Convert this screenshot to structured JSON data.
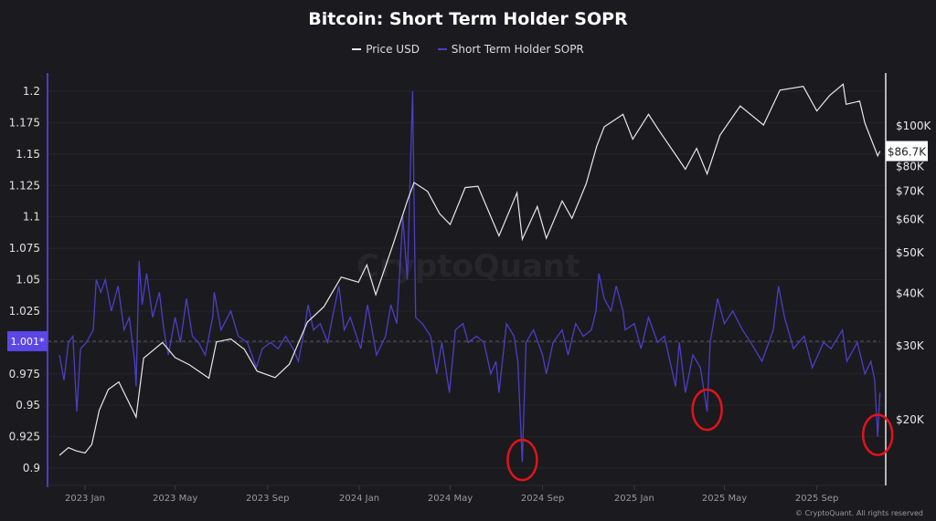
{
  "chart_data": {
    "type": "line",
    "title": "Bitcoin: Short Term Holder SOPR",
    "legend_position": "top",
    "grid": true,
    "left_axis": {
      "ticks": [
        "0.9",
        "0.925",
        "0.95",
        "0.975",
        "1",
        "1.025",
        "1.05",
        "1.075",
        "1.1",
        "1.125",
        "1.15",
        "1.175",
        "1.2"
      ],
      "ylim": [
        0.9,
        1.2
      ],
      "reference_value_label": "1.001*",
      "reference_value": 1.001
    },
    "right_axis": {
      "scale": "log",
      "ticks": [
        {
          "label": "$20K",
          "v": 20000
        },
        {
          "label": "$30K",
          "v": 30000
        },
        {
          "label": "$40K",
          "v": 40000
        },
        {
          "label": "$50K",
          "v": 50000
        },
        {
          "label": "$60K",
          "v": 60000
        },
        {
          "label": "$70K",
          "v": 70000
        },
        {
          "label": "$80K",
          "v": 80000
        },
        {
          "label": "$100K",
          "v": 100000
        }
      ],
      "current_label": "$86.7K",
      "current_value": 86700
    },
    "x_axis": {
      "ticks": [
        {
          "label": "2023 Jan",
          "d": "2023-01-01"
        },
        {
          "label": "2023 May",
          "d": "2023-05-01"
        },
        {
          "label": "2023 Sep",
          "d": "2023-09-01"
        },
        {
          "label": "2024 Jan",
          "d": "2024-01-01"
        },
        {
          "label": "2024 May",
          "d": "2024-05-01"
        },
        {
          "label": "2024 Sep",
          "d": "2024-09-01"
        },
        {
          "label": "2025 Jan",
          "d": "2025-01-01"
        },
        {
          "label": "2025 May",
          "d": "2025-05-01"
        },
        {
          "label": "2025 Sep",
          "d": "2025-09-01"
        }
      ]
    },
    "series": [
      {
        "name": "Price USD",
        "color": "#e8e8e8",
        "axis": "right",
        "points": [
          [
            "2022-11-28",
            16400
          ],
          [
            "2022-12-10",
            17100
          ],
          [
            "2022-12-20",
            16800
          ],
          [
            "2023-01-01",
            16600
          ],
          [
            "2023-01-10",
            17400
          ],
          [
            "2023-01-20",
            21000
          ],
          [
            "2023-02-01",
            23500
          ],
          [
            "2023-02-15",
            24500
          ],
          [
            "2023-03-10",
            20200
          ],
          [
            "2023-03-20",
            27900
          ],
          [
            "2023-04-14",
            30400
          ],
          [
            "2023-05-01",
            28000
          ],
          [
            "2023-05-20",
            26900
          ],
          [
            "2023-06-15",
            25000
          ],
          [
            "2023-06-25",
            30500
          ],
          [
            "2023-07-14",
            31000
          ],
          [
            "2023-08-01",
            29300
          ],
          [
            "2023-08-18",
            26000
          ],
          [
            "2023-09-11",
            25100
          ],
          [
            "2023-09-30",
            27000
          ],
          [
            "2023-10-24",
            34000
          ],
          [
            "2023-11-15",
            37000
          ],
          [
            "2023-12-08",
            43500
          ],
          [
            "2023-12-31",
            42300
          ],
          [
            "2024-01-11",
            46500
          ],
          [
            "2024-01-23",
            39500
          ],
          [
            "2024-02-15",
            52000
          ],
          [
            "2024-03-05",
            66000
          ],
          [
            "2024-03-14",
            73000
          ],
          [
            "2024-04-01",
            69500
          ],
          [
            "2024-04-17",
            61500
          ],
          [
            "2024-05-01",
            58000
          ],
          [
            "2024-05-21",
            71000
          ],
          [
            "2024-06-07",
            71500
          ],
          [
            "2024-07-05",
            54500
          ],
          [
            "2024-07-29",
            69000
          ],
          [
            "2024-08-05",
            53500
          ],
          [
            "2024-08-25",
            64000
          ],
          [
            "2024-09-06",
            53800
          ],
          [
            "2024-09-27",
            66000
          ],
          [
            "2024-10-10",
            60000
          ],
          [
            "2024-10-29",
            72500
          ],
          [
            "2024-11-12",
            89000
          ],
          [
            "2024-11-22",
            99000
          ],
          [
            "2024-12-17",
            106000
          ],
          [
            "2024-12-30",
            92500
          ],
          [
            "2025-01-20",
            106000
          ],
          [
            "2025-02-03",
            97000
          ],
          [
            "2025-02-27",
            84000
          ],
          [
            "2025-03-10",
            78500
          ],
          [
            "2025-03-25",
            88000
          ],
          [
            "2025-04-08",
            76500
          ],
          [
            "2025-04-25",
            94500
          ],
          [
            "2025-05-22",
            111000
          ],
          [
            "2025-06-22",
            100000
          ],
          [
            "2025-07-14",
            121000
          ],
          [
            "2025-08-14",
            123500
          ],
          [
            "2025-09-01",
            108000
          ],
          [
            "2025-09-18",
            117500
          ],
          [
            "2025-10-06",
            125000
          ],
          [
            "2025-10-10",
            112000
          ],
          [
            "2025-10-28",
            114000
          ],
          [
            "2025-11-04",
            101000
          ],
          [
            "2025-11-21",
            84500
          ],
          [
            "2025-11-24",
            86700
          ]
        ]
      },
      {
        "name": "Short Term Holder SOPR",
        "color": "#4b3fc4",
        "axis": "left",
        "points": [
          [
            "2022-11-28",
            0.99
          ],
          [
            "2022-12-04",
            0.97
          ],
          [
            "2022-12-10",
            1.0
          ],
          [
            "2022-12-16",
            1.005
          ],
          [
            "2022-12-21",
            0.945
          ],
          [
            "2022-12-26",
            0.995
          ],
          [
            "2023-01-03",
            1.0
          ],
          [
            "2023-01-12",
            1.01
          ],
          [
            "2023-01-16",
            1.05
          ],
          [
            "2023-01-22",
            1.04
          ],
          [
            "2023-01-28",
            1.05
          ],
          [
            "2023-02-05",
            1.025
          ],
          [
            "2023-02-14",
            1.045
          ],
          [
            "2023-02-22",
            1.01
          ],
          [
            "2023-03-01",
            1.02
          ],
          [
            "2023-03-08",
            0.985
          ],
          [
            "2023-03-10",
            0.965
          ],
          [
            "2023-03-14",
            1.065
          ],
          [
            "2023-03-18",
            1.03
          ],
          [
            "2023-03-24",
            1.055
          ],
          [
            "2023-04-01",
            1.02
          ],
          [
            "2023-04-10",
            1.04
          ],
          [
            "2023-04-16",
            1.01
          ],
          [
            "2023-04-22",
            0.99
          ],
          [
            "2023-05-01",
            1.02
          ],
          [
            "2023-05-08",
            1.0
          ],
          [
            "2023-05-16",
            1.035
          ],
          [
            "2023-05-24",
            1.005
          ],
          [
            "2023-06-01",
            1.0
          ],
          [
            "2023-06-10",
            0.99
          ],
          [
            "2023-06-20",
            1.02
          ],
          [
            "2023-06-22",
            1.04
          ],
          [
            "2023-07-01",
            1.01
          ],
          [
            "2023-07-14",
            1.025
          ],
          [
            "2023-07-24",
            1.005
          ],
          [
            "2023-08-05",
            1.0
          ],
          [
            "2023-08-17",
            0.98
          ],
          [
            "2023-08-25",
            0.995
          ],
          [
            "2023-09-05",
            1.0
          ],
          [
            "2023-09-15",
            0.995
          ],
          [
            "2023-09-25",
            1.005
          ],
          [
            "2023-10-05",
            0.995
          ],
          [
            "2023-10-12",
            0.985
          ],
          [
            "2023-10-20",
            1.01
          ],
          [
            "2023-10-25",
            1.03
          ],
          [
            "2023-11-01",
            1.01
          ],
          [
            "2023-11-10",
            1.015
          ],
          [
            "2023-11-20",
            1.0
          ],
          [
            "2023-11-28",
            1.025
          ],
          [
            "2023-12-05",
            1.045
          ],
          [
            "2023-12-12",
            1.01
          ],
          [
            "2023-12-20",
            1.02
          ],
          [
            "2024-01-03",
            0.995
          ],
          [
            "2024-01-12",
            1.03
          ],
          [
            "2024-01-24",
            0.99
          ],
          [
            "2024-02-05",
            1.005
          ],
          [
            "2024-02-12",
            1.03
          ],
          [
            "2024-02-20",
            1.015
          ],
          [
            "2024-02-28",
            1.1
          ],
          [
            "2024-03-05",
            1.05
          ],
          [
            "2024-03-12",
            1.2
          ],
          [
            "2024-03-16",
            1.02
          ],
          [
            "2024-03-25",
            1.015
          ],
          [
            "2024-04-05",
            1.005
          ],
          [
            "2024-04-13",
            0.975
          ],
          [
            "2024-04-20",
            1.0
          ],
          [
            "2024-04-30",
            0.96
          ],
          [
            "2024-05-08",
            1.01
          ],
          [
            "2024-05-18",
            1.015
          ],
          [
            "2024-05-25",
            1.0
          ],
          [
            "2024-06-05",
            1.005
          ],
          [
            "2024-06-15",
            1.0
          ],
          [
            "2024-06-24",
            0.975
          ],
          [
            "2024-07-01",
            0.985
          ],
          [
            "2024-07-05",
            0.96
          ],
          [
            "2024-07-15",
            1.015
          ],
          [
            "2024-07-25",
            1.005
          ],
          [
            "2024-07-30",
            0.985
          ],
          [
            "2024-08-05",
            0.905
          ],
          [
            "2024-08-10",
            1.0
          ],
          [
            "2024-08-20",
            1.01
          ],
          [
            "2024-09-01",
            0.99
          ],
          [
            "2024-09-06",
            0.975
          ],
          [
            "2024-09-15",
            1.0
          ],
          [
            "2024-09-27",
            1.01
          ],
          [
            "2024-10-05",
            0.99
          ],
          [
            "2024-10-15",
            1.015
          ],
          [
            "2024-10-25",
            1.005
          ],
          [
            "2024-11-05",
            1.01
          ],
          [
            "2024-11-11",
            1.025
          ],
          [
            "2024-11-15",
            1.055
          ],
          [
            "2024-11-22",
            1.035
          ],
          [
            "2024-12-01",
            1.025
          ],
          [
            "2024-12-08",
            1.045
          ],
          [
            "2024-12-17",
            1.025
          ],
          [
            "2024-12-20",
            1.01
          ],
          [
            "2025-01-01",
            1.015
          ],
          [
            "2025-01-10",
            0.995
          ],
          [
            "2025-01-20",
            1.02
          ],
          [
            "2025-02-01",
            1.0
          ],
          [
            "2025-02-10",
            1.005
          ],
          [
            "2025-02-25",
            0.965
          ],
          [
            "2025-03-02",
            1.0
          ],
          [
            "2025-03-10",
            0.96
          ],
          [
            "2025-03-20",
            0.99
          ],
          [
            "2025-03-30",
            0.98
          ],
          [
            "2025-04-08",
            0.945
          ],
          [
            "2025-04-12",
            1.0
          ],
          [
            "2025-04-22",
            1.035
          ],
          [
            "2025-05-01",
            1.015
          ],
          [
            "2025-05-12",
            1.025
          ],
          [
            "2025-05-25",
            1.01
          ],
          [
            "2025-06-05",
            1.0
          ],
          [
            "2025-06-20",
            0.985
          ],
          [
            "2025-07-05",
            1.01
          ],
          [
            "2025-07-12",
            1.045
          ],
          [
            "2025-07-20",
            1.02
          ],
          [
            "2025-08-01",
            0.995
          ],
          [
            "2025-08-15",
            1.005
          ],
          [
            "2025-08-26",
            0.98
          ],
          [
            "2025-09-10",
            1.0
          ],
          [
            "2025-09-20",
            0.995
          ],
          [
            "2025-10-05",
            1.01
          ],
          [
            "2025-10-11",
            0.985
          ],
          [
            "2025-10-25",
            1.0
          ],
          [
            "2025-11-04",
            0.975
          ],
          [
            "2025-11-12",
            0.985
          ],
          [
            "2025-11-17",
            0.97
          ],
          [
            "2025-11-21",
            0.925
          ],
          [
            "2025-11-24",
            0.96
          ]
        ]
      }
    ],
    "highlighted_points": [
      [
        "2024-08-05",
        0.905
      ],
      [
        "2025-04-08",
        0.945
      ],
      [
        "2025-11-21",
        0.925
      ]
    ],
    "highlight_color": "#e0141a"
  },
  "watermark": "CryptoQuant",
  "footer": "© CryptoQuant. All rights reserved"
}
